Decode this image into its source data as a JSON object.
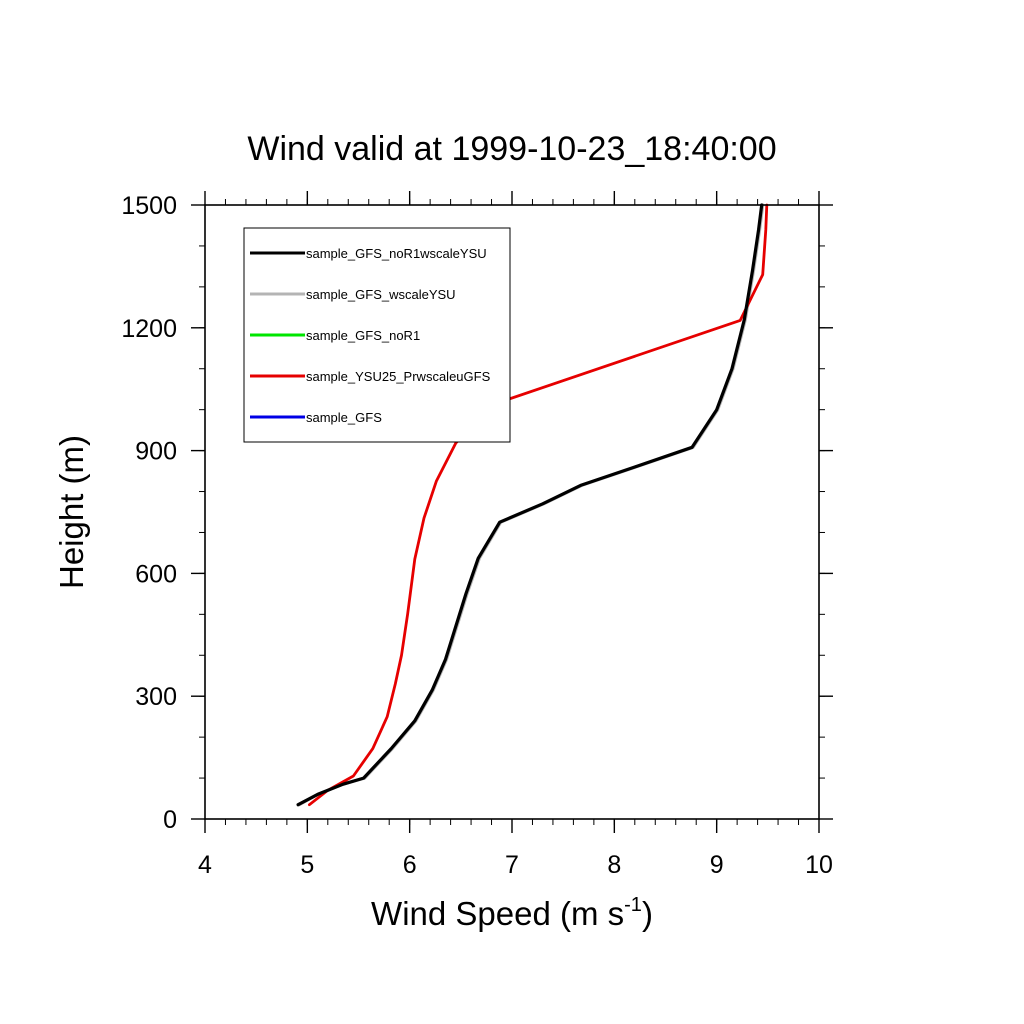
{
  "chart_data": {
    "type": "line",
    "title": "Wind valid at 1999-10-23_18:40:00",
    "xlabel": "Wind Speed (m s",
    "xlabel_sup": "-1",
    "xlabel_close": ")",
    "ylabel": "Height (m)",
    "xlim": [
      4,
      10
    ],
    "ylim": [
      0,
      1500
    ],
    "xticks": [
      4,
      5,
      6,
      7,
      8,
      9,
      10
    ],
    "yticks": [
      0,
      300,
      600,
      900,
      1200,
      1500
    ],
    "xminor_step": 0.2,
    "yminor_step": 100,
    "grid": false,
    "legend_position": "top-left",
    "series": [
      {
        "name": "sample_GFS_noR1wscaleYSU",
        "color": "#000000",
        "points": [
          [
            4.91,
            35
          ],
          [
            5.1,
            60
          ],
          [
            5.35,
            85
          ],
          [
            5.55,
            100
          ],
          [
            5.82,
            172
          ],
          [
            6.05,
            240
          ],
          [
            6.22,
            315
          ],
          [
            6.35,
            390
          ],
          [
            6.55,
            550
          ],
          [
            6.67,
            637
          ],
          [
            6.88,
            725
          ],
          [
            7.3,
            770
          ],
          [
            7.67,
            815
          ],
          [
            8.2,
            860
          ],
          [
            8.76,
            908
          ],
          [
            9.0,
            1000
          ],
          [
            9.15,
            1100
          ],
          [
            9.27,
            1220
          ],
          [
            9.35,
            1340
          ],
          [
            9.41,
            1440
          ],
          [
            9.44,
            1500
          ]
        ]
      },
      {
        "name": "sample_GFS_wscaleYSU",
        "color": "#b4b4b4",
        "points": [
          [
            4.92,
            35
          ],
          [
            5.1,
            60
          ],
          [
            5.35,
            85
          ],
          [
            5.56,
            100
          ],
          [
            5.83,
            172
          ],
          [
            6.06,
            240
          ],
          [
            6.23,
            315
          ],
          [
            6.36,
            390
          ],
          [
            6.56,
            550
          ],
          [
            6.68,
            637
          ],
          [
            6.89,
            725
          ],
          [
            7.31,
            770
          ],
          [
            7.68,
            815
          ],
          [
            8.21,
            860
          ],
          [
            8.77,
            908
          ],
          [
            9.01,
            1000
          ],
          [
            9.16,
            1100
          ],
          [
            9.28,
            1220
          ],
          [
            9.36,
            1340
          ],
          [
            9.42,
            1440
          ],
          [
            9.45,
            1500
          ]
        ]
      },
      {
        "name": "sample_GFS_noR1",
        "color": "#00e600",
        "points": [
          [
            4.91,
            35
          ],
          [
            5.1,
            60
          ],
          [
            5.35,
            85
          ],
          [
            5.55,
            100
          ],
          [
            5.82,
            172
          ],
          [
            6.05,
            240
          ],
          [
            6.22,
            315
          ],
          [
            6.35,
            390
          ],
          [
            6.55,
            550
          ],
          [
            6.67,
            637
          ],
          [
            6.88,
            725
          ],
          [
            7.3,
            770
          ],
          [
            7.67,
            815
          ],
          [
            8.2,
            860
          ],
          [
            8.76,
            908
          ],
          [
            9.0,
            1000
          ],
          [
            9.15,
            1100
          ],
          [
            9.27,
            1220
          ],
          [
            9.35,
            1340
          ],
          [
            9.41,
            1440
          ],
          [
            9.44,
            1500
          ]
        ]
      },
      {
        "name": "sample_YSU25_PrwscaleuGFS",
        "color": "#e60000",
        "points": [
          [
            5.02,
            35
          ],
          [
            5.2,
            70
          ],
          [
            5.45,
            105
          ],
          [
            5.64,
            172
          ],
          [
            5.78,
            250
          ],
          [
            5.86,
            330
          ],
          [
            5.92,
            400
          ],
          [
            5.98,
            500
          ],
          [
            6.05,
            635
          ],
          [
            6.14,
            735
          ],
          [
            6.26,
            825
          ],
          [
            6.45,
            918
          ],
          [
            6.82,
            1013
          ],
          [
            9.23,
            1218
          ],
          [
            9.45,
            1330
          ],
          [
            9.48,
            1440
          ],
          [
            9.49,
            1500
          ]
        ]
      },
      {
        "name": "sample_GFS",
        "color": "#0000e6",
        "points": [
          [
            4.91,
            35
          ],
          [
            5.1,
            60
          ],
          [
            5.35,
            85
          ],
          [
            5.55,
            100
          ],
          [
            5.82,
            172
          ],
          [
            6.05,
            240
          ],
          [
            6.22,
            315
          ],
          [
            6.35,
            390
          ],
          [
            6.55,
            550
          ],
          [
            6.67,
            637
          ],
          [
            6.88,
            725
          ],
          [
            7.3,
            770
          ],
          [
            7.67,
            815
          ],
          [
            8.2,
            860
          ],
          [
            8.76,
            908
          ],
          [
            9.0,
            1000
          ],
          [
            9.15,
            1100
          ],
          [
            9.27,
            1220
          ],
          [
            9.35,
            1340
          ],
          [
            9.41,
            1440
          ],
          [
            9.44,
            1500
          ]
        ]
      }
    ]
  }
}
